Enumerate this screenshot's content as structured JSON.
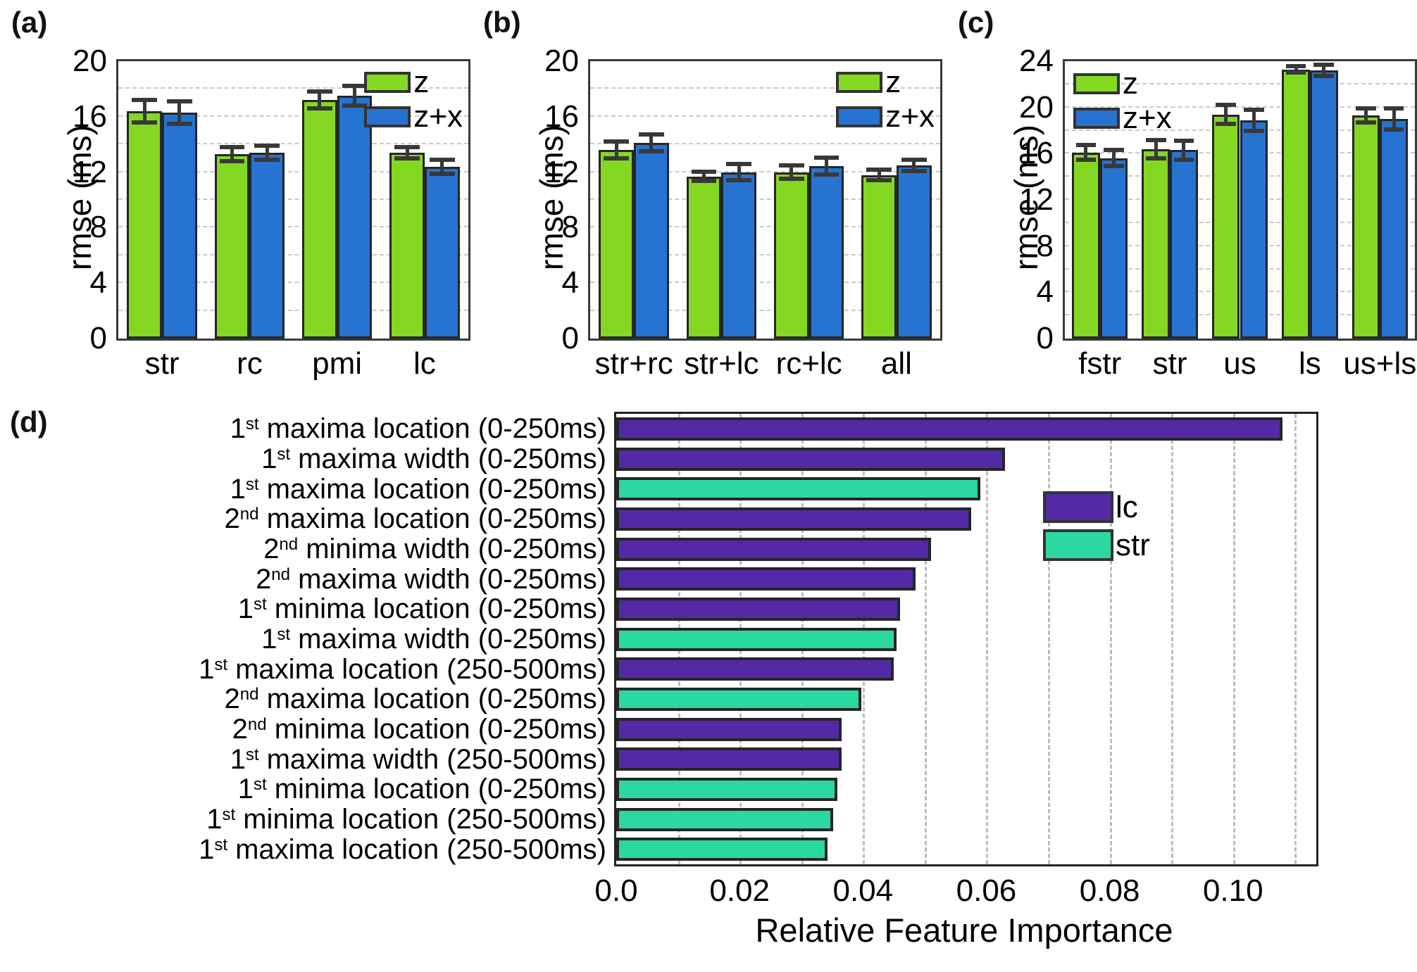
{
  "chart_data": [
    {
      "panel_label": "(a)",
      "type": "bar",
      "ylabel": "rmse (ms)",
      "ylim": [
        0,
        20
      ],
      "yticks": [
        0,
        4,
        8,
        12,
        16,
        20
      ],
      "grid_minor_step": 2,
      "grid": "horizontal-dashed",
      "legend_position": "top-right",
      "categories": [
        "str",
        "rc",
        "pmi",
        "lc"
      ],
      "series": [
        {
          "name": "z",
          "color": "#84D822",
          "values": [
            16.4,
            13.3,
            17.2,
            13.4
          ],
          "errors": [
            0.8,
            0.5,
            0.6,
            0.4
          ]
        },
        {
          "name": "z+x",
          "color": "#2673D1",
          "values": [
            16.3,
            13.4,
            17.5,
            12.4
          ],
          "errors": [
            0.8,
            0.5,
            0.7,
            0.5
          ]
        }
      ]
    },
    {
      "panel_label": "(b)",
      "type": "bar",
      "ylabel": "rmse (ms)",
      "ylim": [
        0,
        20
      ],
      "yticks": [
        0,
        4,
        8,
        12,
        16,
        20
      ],
      "grid_minor_step": 2,
      "grid": "horizontal-dashed",
      "legend_position": "top-right",
      "categories": [
        "str+rc",
        "str+lc",
        "rc+lc",
        "all"
      ],
      "series": [
        {
          "name": "z",
          "color": "#84D822",
          "values": [
            13.6,
            11.7,
            12.0,
            11.8
          ],
          "errors": [
            0.6,
            0.35,
            0.5,
            0.4
          ]
        },
        {
          "name": "z+x",
          "color": "#2673D1",
          "values": [
            14.1,
            12.0,
            12.45,
            12.5
          ],
          "errors": [
            0.6,
            0.6,
            0.6,
            0.4
          ]
        }
      ]
    },
    {
      "panel_label": "(c)",
      "type": "bar",
      "ylabel": "rmse (ms)",
      "ylim": [
        0,
        24
      ],
      "yticks": [
        0,
        4,
        8,
        12,
        16,
        20,
        24
      ],
      "grid_minor_step": 2,
      "grid": "horizontal-dashed",
      "legend_position": "top-left",
      "categories": [
        "fstr",
        "str",
        "us",
        "ls",
        "us+ls"
      ],
      "series": [
        {
          "name": "z",
          "color": "#84D822",
          "values": [
            16.1,
            16.4,
            19.4,
            23.3,
            19.3
          ],
          "errors": [
            0.65,
            0.8,
            0.85,
            0.3,
            0.6
          ]
        },
        {
          "name": "z+x",
          "color": "#2673D1",
          "values": [
            15.6,
            16.3,
            18.9,
            23.2,
            19.0
          ],
          "errors": [
            0.7,
            0.8,
            0.9,
            0.5,
            0.9
          ]
        }
      ]
    },
    {
      "panel_label": "(d)",
      "type": "bar-horizontal",
      "xlabel": "Relative Feature Importance",
      "xlim": [
        0,
        0.1135
      ],
      "grid_minor_step": 0.01,
      "grid": "vertical-dashed",
      "xticks": [
        {
          "v": 0,
          "label": "0.0"
        },
        {
          "v": 0.02,
          "label": "0.02"
        },
        {
          "v": 0.04,
          "label": "0.04"
        },
        {
          "v": 0.06,
          "label": "0.06"
        },
        {
          "v": 0.08,
          "label": "0.08"
        },
        {
          "v": 0.1,
          "label": "0.10"
        }
      ],
      "groups": [
        {
          "name": "lc",
          "color": "#5429A6"
        },
        {
          "name": "str",
          "color": "#2CD8A2"
        }
      ],
      "rows": [
        {
          "ord": "1",
          "sup": "st",
          "text": "maxima location (0-250ms)",
          "group": "lc",
          "value": 0.108
        },
        {
          "ord": "1",
          "sup": "st",
          "text": "maxima width (0-250ms)",
          "group": "lc",
          "value": 0.063
        },
        {
          "ord": "1",
          "sup": "st",
          "text": "maxima location (0-250ms)",
          "group": "str",
          "value": 0.059
        },
        {
          "ord": "2",
          "sup": "nd",
          "text": "maxima location (0-250ms)",
          "group": "lc",
          "value": 0.0575
        },
        {
          "ord": "2",
          "sup": "nd",
          "text": "minima width (0-250ms)",
          "group": "lc",
          "value": 0.051
        },
        {
          "ord": "2",
          "sup": "nd",
          "text": "maxima width (0-250ms)",
          "group": "lc",
          "value": 0.0485
        },
        {
          "ord": "1",
          "sup": "st",
          "text": "minima location (0-250ms)",
          "group": "lc",
          "value": 0.046
        },
        {
          "ord": "1",
          "sup": "st",
          "text": "maxima width (0-250ms)",
          "group": "str",
          "value": 0.0455
        },
        {
          "ord": "1",
          "sup": "st",
          "text": "maxima location (250-500ms)",
          "group": "lc",
          "value": 0.045
        },
        {
          "ord": "2",
          "sup": "nd",
          "text": "maxima location (0-250ms)",
          "group": "str",
          "value": 0.0397
        },
        {
          "ord": "2",
          "sup": "nd",
          "text": "minima location (0-250ms)",
          "group": "lc",
          "value": 0.0365
        },
        {
          "ord": "1",
          "sup": "st",
          "text": "maxima width (250-500ms)",
          "group": "lc",
          "value": 0.0365
        },
        {
          "ord": "1",
          "sup": "st",
          "text": "minima location (0-250ms)",
          "group": "str",
          "value": 0.0358
        },
        {
          "ord": "1",
          "sup": "st",
          "text": "minima location (250-500ms)",
          "group": "str",
          "value": 0.0352
        },
        {
          "ord": "1",
          "sup": "st",
          "text": "maxima location (250-500ms)",
          "group": "str",
          "value": 0.0343
        }
      ]
    }
  ]
}
